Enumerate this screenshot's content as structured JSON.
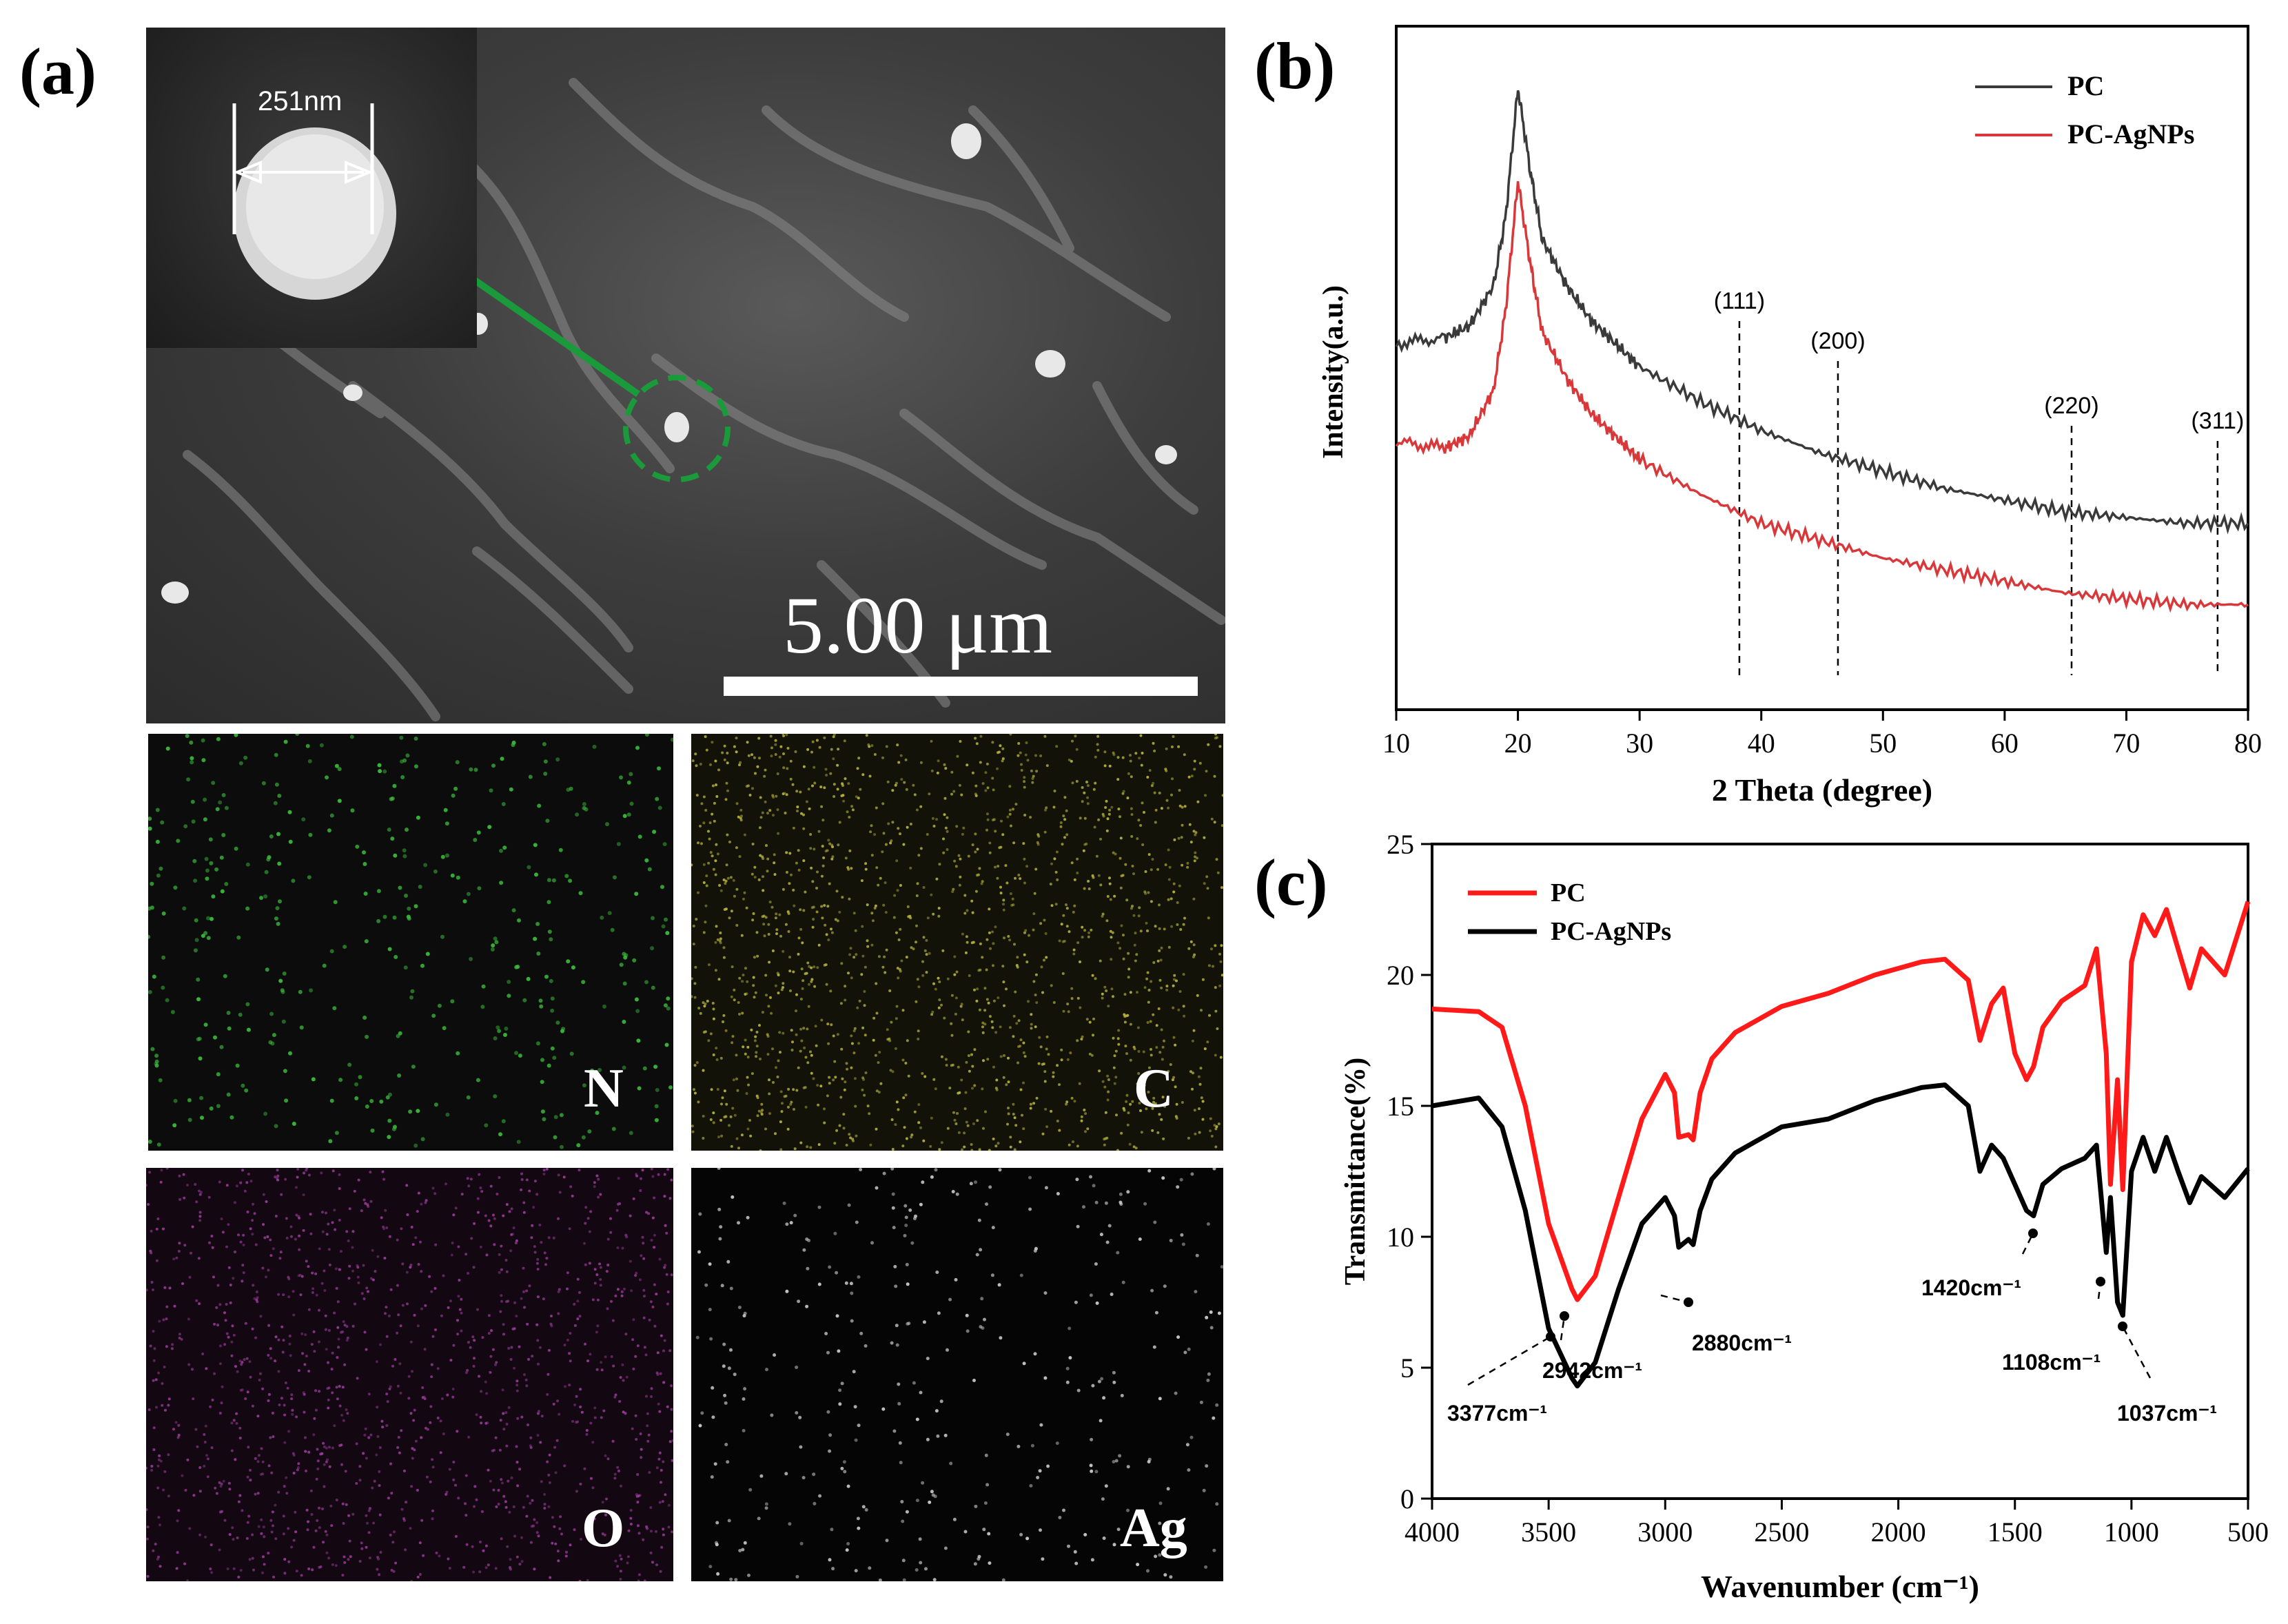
{
  "panels": {
    "a": "(a)",
    "b": "(b)",
    "c": "(c)"
  },
  "sem": {
    "inset_measure": "251nm",
    "scale_bar": "5.00 μm",
    "arrow_color": "#1a9a3a"
  },
  "eds": [
    {
      "element": "N",
      "color": "#3bbf3b"
    },
    {
      "element": "C",
      "color": "#b8b43a"
    },
    {
      "element": "O",
      "color": "#9a3a9a"
    },
    {
      "element": "Ag",
      "color": "#cfcfcf"
    }
  ],
  "chart_data": [
    {
      "type": "line",
      "panel": "(b)",
      "xlabel": "2 Theta (degree)",
      "ylabel": "Intensity(a.u.)",
      "xlim": [
        10,
        80
      ],
      "xticks": [
        10,
        20,
        30,
        40,
        50,
        60,
        70,
        80
      ],
      "legend": "top-right",
      "series": [
        {
          "name": "PC",
          "color": "#3a3a3a",
          "x": [
            10,
            14,
            16,
            18,
            19,
            20,
            21,
            22,
            24,
            26,
            28,
            30,
            35,
            40,
            45,
            50,
            55,
            60,
            65,
            70,
            75,
            80
          ],
          "y": [
            0.56,
            0.57,
            0.59,
            0.66,
            0.78,
            1.0,
            0.86,
            0.74,
            0.66,
            0.6,
            0.56,
            0.52,
            0.46,
            0.41,
            0.37,
            0.34,
            0.31,
            0.29,
            0.27,
            0.26,
            0.25,
            0.25
          ]
        },
        {
          "name": "PC-AgNPs",
          "color": "#d9383a",
          "x": [
            10,
            14,
            16,
            18,
            19,
            20,
            21,
            22,
            24,
            26,
            28,
            30,
            35,
            40,
            45,
            50,
            55,
            60,
            65,
            70,
            75,
            80
          ],
          "y": [
            0.39,
            0.38,
            0.4,
            0.48,
            0.62,
            0.84,
            0.7,
            0.58,
            0.5,
            0.44,
            0.4,
            0.36,
            0.3,
            0.25,
            0.22,
            0.19,
            0.17,
            0.15,
            0.13,
            0.12,
            0.11,
            0.11
          ]
        }
      ],
      "annotations": [
        {
          "label": "(111)",
          "x": 38.2
        },
        {
          "label": "(200)",
          "x": 46.3
        },
        {
          "label": "(220)",
          "x": 65.5
        },
        {
          "label": "(311)",
          "x": 77.5
        }
      ]
    },
    {
      "type": "line",
      "panel": "(c)",
      "xlabel": "Wavenumber (cm⁻¹)",
      "ylabel": "Transmittance(%)",
      "xlim": [
        4000,
        500
      ],
      "ylim": [
        0,
        25
      ],
      "xticks": [
        4000,
        3500,
        3000,
        2500,
        2000,
        1500,
        1000,
        500
      ],
      "yticks": [
        0,
        5,
        10,
        15,
        20,
        25
      ],
      "legend": "top-left",
      "series": [
        {
          "name": "PC",
          "color": "#ff1a1a",
          "x": [
            4000,
            3800,
            3700,
            3600,
            3500,
            3400,
            3377,
            3300,
            3200,
            3100,
            3000,
            2960,
            2942,
            2900,
            2880,
            2850,
            2800,
            2700,
            2500,
            2300,
            2100,
            1900,
            1800,
            1700,
            1650,
            1600,
            1550,
            1500,
            1450,
            1420,
            1380,
            1300,
            1200,
            1150,
            1108,
            1090,
            1060,
            1037,
            1000,
            950,
            900,
            850,
            800,
            750,
            700,
            600,
            500
          ],
          "y": [
            18.7,
            18.6,
            18.0,
            15.0,
            10.5,
            8.0,
            7.6,
            8.5,
            11.5,
            14.5,
            16.2,
            15.5,
            13.8,
            13.9,
            13.7,
            15.5,
            16.8,
            17.8,
            18.8,
            19.3,
            20.0,
            20.5,
            20.6,
            19.8,
            17.5,
            18.9,
            19.5,
            17.0,
            16.0,
            16.5,
            18.0,
            19.0,
            19.6,
            21.0,
            17.0,
            12.0,
            16.0,
            11.8,
            20.5,
            22.3,
            21.5,
            22.5,
            21.0,
            19.5,
            21.0,
            20.0,
            22.8
          ]
        },
        {
          "name": "PC-AgNPs",
          "color": "#000000",
          "x": [
            4000,
            3800,
            3700,
            3600,
            3500,
            3400,
            3377,
            3300,
            3200,
            3100,
            3000,
            2960,
            2942,
            2900,
            2880,
            2850,
            2800,
            2700,
            2500,
            2300,
            2100,
            1900,
            1800,
            1700,
            1650,
            1600,
            1550,
            1500,
            1450,
            1420,
            1380,
            1300,
            1200,
            1150,
            1108,
            1090,
            1060,
            1037,
            1000,
            950,
            900,
            850,
            800,
            750,
            700,
            600,
            500
          ],
          "y": [
            15.0,
            15.3,
            14.2,
            11.0,
            6.5,
            4.6,
            4.3,
            5.2,
            8.0,
            10.5,
            11.5,
            10.8,
            9.6,
            9.9,
            9.7,
            11.0,
            12.2,
            13.2,
            14.2,
            14.5,
            15.2,
            15.7,
            15.8,
            15.0,
            12.5,
            13.5,
            13.0,
            12.0,
            11.0,
            10.8,
            12.0,
            12.6,
            13.0,
            13.5,
            9.4,
            11.5,
            7.5,
            7.0,
            12.5,
            13.8,
            12.5,
            13.8,
            12.5,
            11.3,
            12.3,
            11.5,
            12.6
          ]
        }
      ],
      "annotations": [
        {
          "label": "3377cm⁻¹",
          "x": 3377
        },
        {
          "label": "2942cm⁻¹",
          "x": 2942
        },
        {
          "label": "2880cm⁻¹",
          "x": 2880
        },
        {
          "label": "1420cm⁻¹",
          "x": 1420
        },
        {
          "label": "1108cm⁻¹",
          "x": 1108
        },
        {
          "label": "1037cm⁻¹",
          "x": 1037
        }
      ]
    }
  ]
}
